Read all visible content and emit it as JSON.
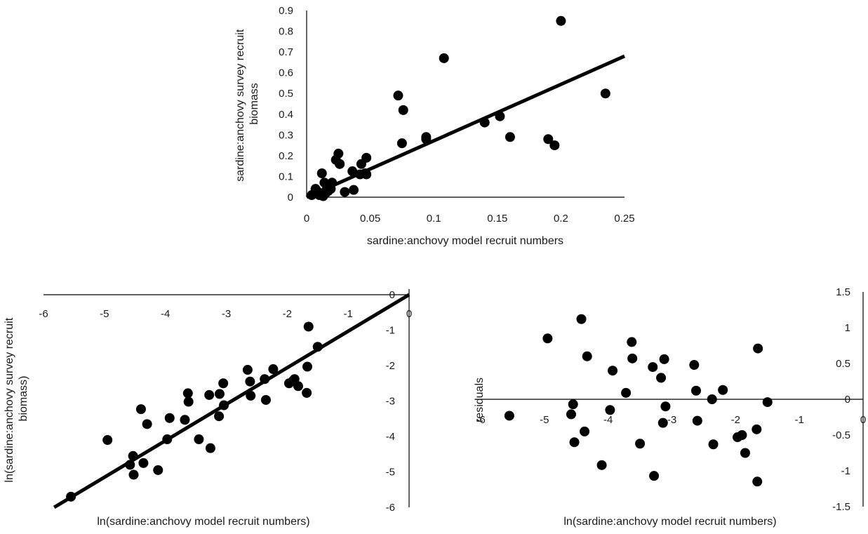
{
  "chart_data": [
    {
      "type": "scatter",
      "xlabel": "sardine:anchovy model recruit numbers",
      "ylabel": "sardine:anchovy survey recruit biomass",
      "xlim": [
        0,
        0.25
      ],
      "ylim": [
        0,
        0.9
      ],
      "x_ticks": [
        "0",
        "0.05",
        "0.1",
        "0.15",
        "0.2",
        "0.25"
      ],
      "y_ticks": [
        "0",
        "0.1",
        "0.2",
        "0.3",
        "0.4",
        "0.5",
        "0.6",
        "0.7",
        "0.8",
        "0.9"
      ],
      "trendline": {
        "type": "linear",
        "intercept": 0,
        "slope": 2.72
      },
      "series": [
        {
          "x": [
            0.004,
            0.007,
            0.008,
            0.009,
            0.01,
            0.011,
            0.012,
            0.013,
            0.014,
            0.015,
            0.016,
            0.017,
            0.018,
            0.019,
            0.02,
            0.023,
            0.025,
            0.026,
            0.026,
            0.03,
            0.036,
            0.037,
            0.042,
            0.043,
            0.046,
            0.047,
            0.047,
            0.072,
            0.075,
            0.076,
            0.094,
            0.094,
            0.108,
            0.14,
            0.152,
            0.16,
            0.19,
            0.195,
            0.2,
            0.235
          ],
          "y": [
            0.01,
            0.04,
            0.03,
            0.02,
            0.01,
            0.02,
            0.115,
            0.005,
            0.07,
            0.02,
            0.04,
            0.03,
            0.05,
            0.04,
            0.07,
            0.18,
            0.21,
            0.16,
            0.16,
            0.025,
            0.125,
            0.035,
            0.11,
            0.16,
            0.115,
            0.11,
            0.19,
            0.49,
            0.26,
            0.42,
            0.28,
            0.29,
            0.67,
            0.36,
            0.39,
            0.29,
            0.28,
            0.25,
            0.85,
            0.5
          ]
        }
      ]
    },
    {
      "type": "scatter",
      "xlabel": "ln(sardine:anchovy model recruit numbers)",
      "ylabel": "ln(sardine:anchovy survey recruit biomass)",
      "xlim": [
        -6,
        0
      ],
      "ylim": [
        -6,
        0
      ],
      "x_ticks": [
        "-6",
        "-5",
        "-4",
        "-3",
        "-2",
        "-1",
        "0"
      ],
      "y_ticks": [
        "0",
        "-1",
        "-2",
        "-3",
        "-4",
        "-5",
        "-6"
      ],
      "trendline": {
        "type": "linear",
        "intercept": 0,
        "slope": 1.03
      },
      "series": [
        {
          "x": [
            -5.55,
            -4.95,
            -4.58,
            -4.53,
            -4.52,
            -4.4,
            -4.36,
            -4.3,
            -4.12,
            -3.97,
            -3.93,
            -3.68,
            -3.63,
            -3.62,
            -3.45,
            -3.28,
            -3.26,
            -3.12,
            -3.11,
            -3.05,
            -3.04,
            -2.65,
            -2.61,
            -2.6,
            -2.37,
            -2.35,
            -2.23,
            -1.97,
            -1.9,
            -1.88,
            -1.82,
            -1.68,
            -1.67,
            -1.65,
            -1.5
          ],
          "y": [
            -5.7,
            -4.1,
            -4.8,
            -4.55,
            -5.08,
            -3.23,
            -4.75,
            -3.65,
            -4.95,
            -4.08,
            -3.48,
            -3.53,
            -2.78,
            -3.02,
            -4.08,
            -2.83,
            -4.33,
            -3.43,
            -2.8,
            -2.5,
            -3.12,
            -2.12,
            -2.45,
            -2.85,
            -2.38,
            -2.97,
            -2.1,
            -2.5,
            -2.42,
            -2.38,
            -2.58,
            -2.77,
            -2.03,
            -0.9,
            -1.47
          ]
        }
      ]
    },
    {
      "type": "scatter",
      "xlabel": "ln(sardine:anchovy model recruit numbers)",
      "ylabel": "residuals",
      "xlim": [
        -6,
        0
      ],
      "ylim": [
        -1.5,
        1.5
      ],
      "x_ticks": [
        "-6",
        "-5",
        "-4",
        "-3",
        "-2",
        "-1",
        "0"
      ],
      "y_ticks": [
        "1.5",
        "1",
        "0.5",
        "0",
        "-0.5",
        "-1",
        "-1.5"
      ],
      "series": [
        {
          "x": [
            -5.55,
            -4.95,
            -4.58,
            -4.55,
            -4.53,
            -4.42,
            -4.37,
            -4.33,
            -4.1,
            -3.97,
            -3.93,
            -3.72,
            -3.63,
            -3.62,
            -3.5,
            -3.3,
            -3.28,
            -3.17,
            -3.14,
            -3.12,
            -3.1,
            -2.65,
            -2.62,
            -2.6,
            -2.37,
            -2.35,
            -2.2,
            -1.97,
            -1.9,
            -1.85,
            -1.67,
            -1.66,
            -1.65,
            -1.5
          ],
          "y": [
            -0.23,
            0.85,
            -0.21,
            -0.07,
            -0.6,
            1.12,
            -0.45,
            0.6,
            -0.92,
            -0.15,
            0.4,
            0.09,
            0.8,
            0.57,
            -0.62,
            0.45,
            -1.07,
            0.3,
            -0.33,
            0.56,
            -0.1,
            0.48,
            0.12,
            -0.3,
            0.0,
            -0.63,
            0.13,
            -0.53,
            -0.5,
            -0.75,
            -0.42,
            -1.15,
            0.71,
            -0.04
          ]
        }
      ]
    }
  ]
}
